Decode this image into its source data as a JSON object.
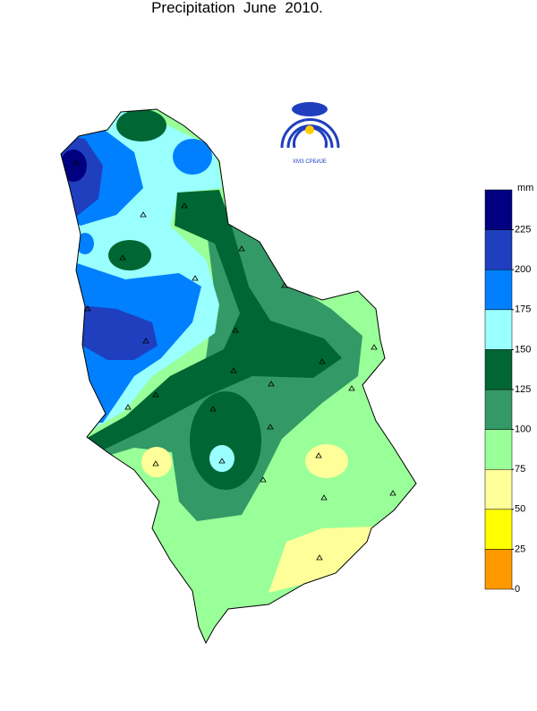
{
  "title": "Precipitation  June  2010.",
  "logo_text": "ХМЗ СРБИЈЕ",
  "legend": {
    "unit": "mm",
    "ticks": [
      0,
      25,
      50,
      75,
      100,
      125,
      150,
      175,
      200,
      225
    ],
    "colors": [
      "#ff9900",
      "#ffff00",
      "#ffff99",
      "#99ff99",
      "#339966",
      "#006633",
      "#99ffff",
      "#0080ff",
      "#1f3fbf",
      "#000080"
    ]
  }
}
